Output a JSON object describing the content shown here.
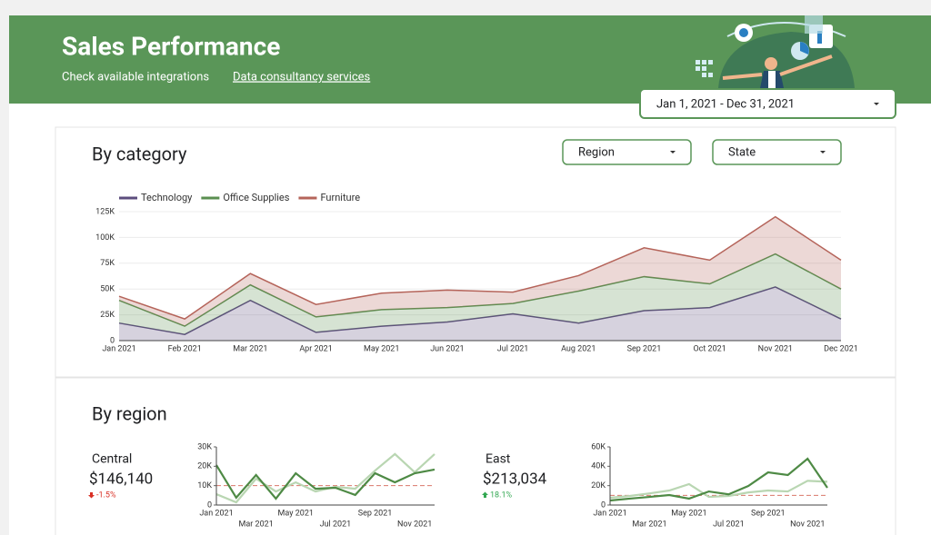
{
  "header": {
    "title": "Sales Performance",
    "links": [
      "Check available integrations",
      "Data consultancy services"
    ],
    "date_range": "Jan 1, 2021 - Dec 31, 2021"
  },
  "category_section": {
    "title": "By category",
    "filters": [
      "Region",
      "State"
    ],
    "chart": {
      "type": "area",
      "stacked": true,
      "grid": true,
      "legend": "top-left",
      "categories": [
        "Jan 2021",
        "Feb 2021",
        "Mar 2021",
        "Apr 2021",
        "May 2021",
        "Jun 2021",
        "Jul 2021",
        "Aug 2021",
        "Sep 2021",
        "Oct 2021",
        "Nov 2021",
        "Dec 2021"
      ],
      "series": [
        {
          "name": "Technology",
          "color": "#5c4d7d",
          "values": [
            17000,
            6000,
            39000,
            8000,
            14000,
            18000,
            26000,
            17000,
            29000,
            32000,
            52000,
            21000
          ]
        },
        {
          "name": "Office Supplies",
          "color": "#5a8f50",
          "values": [
            22000,
            8000,
            15000,
            15000,
            16000,
            14000,
            10000,
            31000,
            33000,
            23000,
            32000,
            29000
          ]
        },
        {
          "name": "Furniture",
          "color": "#b5645a",
          "values": [
            4000,
            7000,
            11000,
            12000,
            16000,
            17000,
            11000,
            15000,
            28000,
            23000,
            36000,
            28000
          ]
        }
      ],
      "ylim": [
        0,
        125000
      ],
      "yticks": [
        0,
        {
          "value": 25000,
          "label": "25K"
        },
        {
          "value": 50000,
          "label": "50K"
        },
        {
          "value": 75000,
          "label": "75K"
        },
        {
          "value": 100000,
          "label": "100K"
        },
        {
          "value": 125000,
          "label": "125K"
        }
      ]
    }
  },
  "region_section": {
    "title": "By region",
    "regions": [
      {
        "name": "Central",
        "total": "$146,140",
        "change": "-1.5%",
        "trend": "down",
        "chart": {
          "type": "line",
          "categories": [
            "Jan 2021",
            null,
            "Mar 2021",
            null,
            "May 2021",
            null,
            "Jul 2021",
            null,
            "Sep 2021",
            null,
            "Nov 2021",
            null
          ],
          "series": [
            {
              "color": "#b9d6b2",
              "values": [
                5600,
                1400,
                13600,
                7000,
                11700,
                7000,
                9400,
                8400,
                17800,
                26300,
                16900,
                26300
              ]
            },
            {
              "color": "#4e8a45",
              "values": [
                20600,
                3800,
                15500,
                3300,
                16400,
                8400,
                8900,
                5200,
                16400,
                11700,
                16400,
                18300
              ]
            }
          ],
          "reference_line": 10000,
          "reference_color": "#d9776b",
          "ylim": [
            0,
            30000
          ],
          "yticks": [
            0,
            {
              "value": 10000,
              "label": "10K"
            },
            {
              "value": 20000,
              "label": "20K"
            },
            {
              "value": 30000,
              "label": "30K"
            }
          ]
        }
      },
      {
        "name": "East",
        "total": "$213,034",
        "change": "18.1%",
        "trend": "up",
        "chart": {
          "type": "line",
          "categories": [
            "Jan 2021",
            null,
            "Mar 2021",
            null,
            "May 2021",
            null,
            "Jul 2021",
            null,
            "Sep 2021",
            null,
            "Nov 2021",
            null
          ],
          "series": [
            {
              "color": "#b9d6b2",
              "values": [
                7500,
                9400,
                12000,
                15000,
                21600,
                8400,
                9400,
                13000,
                15000,
                14000,
                25000,
                24000
              ]
            },
            {
              "color": "#4e8a45",
              "values": [
                4700,
                6600,
                8400,
                10300,
                6600,
                14000,
                11000,
                19700,
                33700,
                31000,
                47800,
                17800
              ]
            }
          ],
          "reference_line": 10000,
          "reference_color": "#d9776b",
          "ylim": [
            0,
            60000
          ],
          "yticks": [
            0,
            {
              "value": 20000,
              "label": "20K"
            },
            {
              "value": 40000,
              "label": "40K"
            },
            {
              "value": 60000,
              "label": "60K"
            }
          ]
        }
      }
    ]
  }
}
